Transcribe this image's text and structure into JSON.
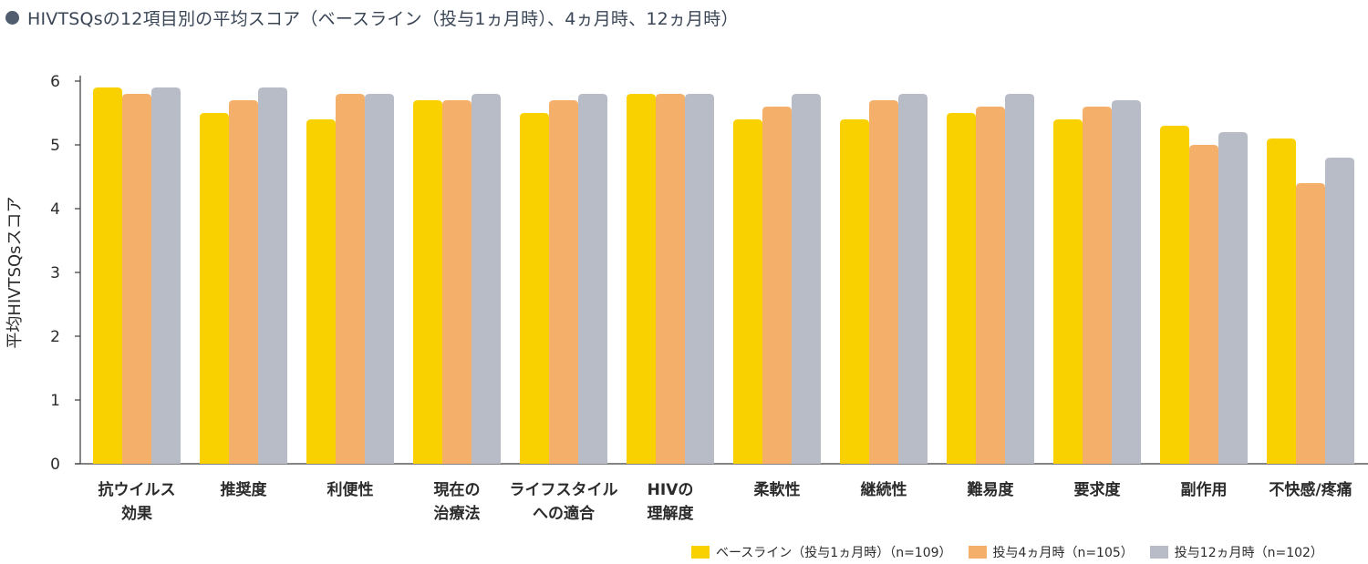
{
  "title": "HIVTSQsの12項目別の平均スコア（ベースライン（投与1ヵ月時）、4ヵ月時、12ヵ月時）",
  "colors": {
    "title_dot": "#4f5d6e",
    "axis": "#3a3a3a"
  },
  "chart_data": {
    "type": "bar",
    "title": "HIVTSQsの12項目別の平均スコア（ベースライン（投与1ヵ月時）、4ヵ月時、12ヵ月時）",
    "ylabel": "平均HIVTSQsスコア",
    "xlabel": "",
    "ylim": [
      0,
      6
    ],
    "yticks": [
      "0",
      "1",
      "2",
      "3",
      "4",
      "5",
      "6"
    ],
    "grid": false,
    "legend_position": "bottom-right",
    "categories": [
      [
        "抗ウイルス",
        "効果"
      ],
      [
        "推奨度"
      ],
      [
        "利便性"
      ],
      [
        "現在の",
        "治療法"
      ],
      [
        "ライフスタイル",
        "への適合"
      ],
      [
        "HIVの",
        "理解度"
      ],
      [
        "柔軟性"
      ],
      [
        "継続性"
      ],
      [
        "難易度"
      ],
      [
        "要求度"
      ],
      [
        "副作用"
      ],
      [
        "不快感/疼痛"
      ]
    ],
    "series": [
      {
        "name": "ベースライン（投与1ヵ月時）（n=109）",
        "color": "#f9d100",
        "values": [
          5.9,
          5.5,
          5.4,
          5.7,
          5.5,
          5.8,
          5.4,
          5.4,
          5.5,
          5.4,
          5.3,
          5.1
        ]
      },
      {
        "name": "投与4ヵ月時（n=105）",
        "color": "#f4b06b",
        "values": [
          5.8,
          5.7,
          5.8,
          5.7,
          5.7,
          5.8,
          5.6,
          5.7,
          5.6,
          5.6,
          5.0,
          4.4
        ]
      },
      {
        "name": "投与12ヵ月時（n=102）",
        "color": "#b8bcc6",
        "values": [
          5.9,
          5.9,
          5.8,
          5.8,
          5.8,
          5.8,
          5.8,
          5.8,
          5.8,
          5.7,
          5.2,
          4.8
        ]
      }
    ]
  }
}
